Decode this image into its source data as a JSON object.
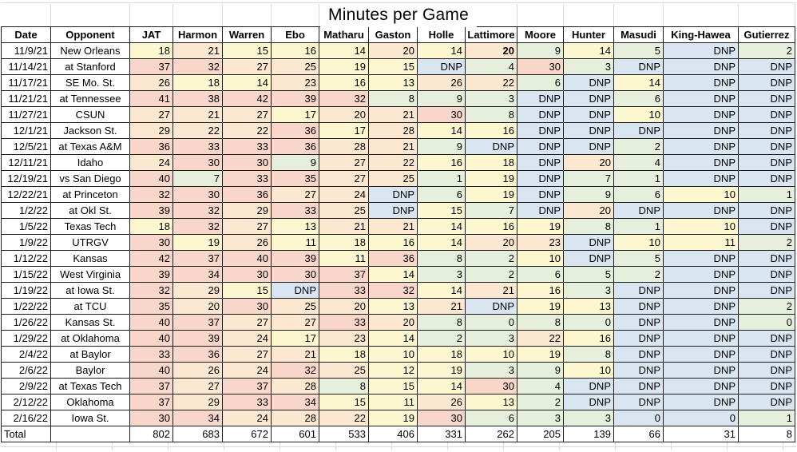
{
  "title": "Minutes per Game",
  "columns": [
    "Date",
    "Opponent",
    "JAT",
    "Harmon",
    "Warren",
    "Ebo",
    "Matharu",
    "Gaston",
    "Holle",
    "Lattimore",
    "Moore",
    "Hunter",
    "Masudi",
    "King-Hawea",
    "Gutierrez"
  ],
  "dnp_label": "DNP",
  "rows": [
    {
      "date": "11/9/21",
      "opponent": "New Orleans",
      "minutes": [
        "18",
        "21",
        "15",
        "16",
        "14",
        "20",
        "14",
        "20",
        "9",
        "14",
        "5",
        "DNP",
        "2"
      ]
    },
    {
      "date": "11/14/21",
      "opponent": "at Stanford",
      "minutes": [
        "37",
        "32",
        "27",
        "25",
        "19",
        "15",
        "DNP",
        "4",
        "30",
        "3",
        "DNP",
        "DNP",
        "DNP"
      ]
    },
    {
      "date": "11/17/21",
      "opponent": "SE Mo. St.",
      "minutes": [
        "26",
        "18",
        "14",
        "23",
        "16",
        "13",
        "26",
        "22",
        "6",
        "DNP",
        "14",
        "DNP",
        "DNP"
      ]
    },
    {
      "date": "11/21/21",
      "opponent": "at Tennessee",
      "minutes": [
        "41",
        "38",
        "42",
        "39",
        "32",
        "8",
        "9",
        "3",
        "DNP",
        "DNP",
        "6",
        "DNP",
        "DNP"
      ]
    },
    {
      "date": "11/27/21",
      "opponent": "CSUN",
      "minutes": [
        "27",
        "21",
        "27",
        "17",
        "20",
        "21",
        "30",
        "8",
        "DNP",
        "DNP",
        "10",
        "DNP",
        "DNP"
      ]
    },
    {
      "date": "12/1/21",
      "opponent": "Jackson St.",
      "minutes": [
        "29",
        "22",
        "22",
        "36",
        "17",
        "28",
        "14",
        "16",
        "DNP",
        "DNP",
        "DNP",
        "DNP",
        "DNP"
      ]
    },
    {
      "date": "12/5/21",
      "opponent": "at Texas A&M",
      "minutes": [
        "36",
        "33",
        "33",
        "36",
        "28",
        "21",
        "9",
        "DNP",
        "DNP",
        "DNP",
        "2",
        "DNP",
        "DNP"
      ]
    },
    {
      "date": "12/11/21",
      "opponent": "Idaho",
      "minutes": [
        "24",
        "30",
        "30",
        "9",
        "27",
        "22",
        "16",
        "18",
        "DNP",
        "20",
        "4",
        "DNP",
        "DNP"
      ]
    },
    {
      "date": "12/19/21",
      "opponent": "vs San Diego",
      "minutes": [
        "40",
        "7",
        "33",
        "35",
        "27",
        "25",
        "1",
        "19",
        "DNP",
        "7",
        "1",
        "DNP",
        "DNP"
      ]
    },
    {
      "date": "12/22/21",
      "opponent": "at Princeton",
      "minutes": [
        "32",
        "30",
        "36",
        "27",
        "24",
        "DNP",
        "6",
        "19",
        "DNP",
        "9",
        "6",
        "10",
        "1"
      ]
    },
    {
      "date": "1/2/22",
      "opponent": "at Okl St.",
      "minutes": [
        "39",
        "32",
        "29",
        "33",
        "25",
        "DNP",
        "15",
        "7",
        "DNP",
        "20",
        "DNP",
        "DNP",
        "DNP"
      ]
    },
    {
      "date": "1/5/22",
      "opponent": "Texas Tech",
      "minutes": [
        "18",
        "32",
        "27",
        "13",
        "21",
        "21",
        "14",
        "16",
        "19",
        "8",
        "1",
        "10",
        "DNP"
      ]
    },
    {
      "date": "1/9/22",
      "opponent": "UTRGV",
      "minutes": [
        "30",
        "19",
        "26",
        "11",
        "18",
        "16",
        "14",
        "20",
        "23",
        "DNP",
        "10",
        "11",
        "2"
      ]
    },
    {
      "date": "1/12/22",
      "opponent": "Kansas",
      "minutes": [
        "42",
        "37",
        "40",
        "39",
        "11",
        "36",
        "8",
        "2",
        "10",
        "DNP",
        "5",
        "DNP",
        "DNP"
      ]
    },
    {
      "date": "1/15/22",
      "opponent": "West Virginia",
      "minutes": [
        "39",
        "34",
        "30",
        "30",
        "37",
        "14",
        "3",
        "2",
        "6",
        "5",
        "2",
        "DNP",
        "DNP"
      ]
    },
    {
      "date": "1/19/22",
      "opponent": "at Iowa St.",
      "minutes": [
        "32",
        "29",
        "15",
        "DNP",
        "33",
        "32",
        "14",
        "21",
        "16",
        "3",
        "DNP",
        "DNP",
        "DNP"
      ]
    },
    {
      "date": "1/22/22",
      "opponent": "at TCU",
      "minutes": [
        "35",
        "20",
        "30",
        "25",
        "20",
        "13",
        "21",
        "DNP",
        "19",
        "13",
        "DNP",
        "DNP",
        "2"
      ]
    },
    {
      "date": "1/26/22",
      "opponent": "Kansas St.",
      "minutes": [
        "40",
        "37",
        "27",
        "27",
        "33",
        "20",
        "8",
        "0",
        "8",
        "0",
        "DNP",
        "DNP",
        "0"
      ]
    },
    {
      "date": "1/29/22",
      "opponent": "at Oklahoma",
      "minutes": [
        "40",
        "39",
        "24",
        "17",
        "23",
        "14",
        "2",
        "3",
        "22",
        "16",
        "DNP",
        "DNP",
        "DNP"
      ]
    },
    {
      "date": "2/4/22",
      "opponent": "at Baylor",
      "minutes": [
        "33",
        "36",
        "27",
        "21",
        "18",
        "10",
        "18",
        "10",
        "19",
        "8",
        "DNP",
        "DNP",
        "DNP"
      ]
    },
    {
      "date": "2/6/22",
      "opponent": "Baylor",
      "minutes": [
        "40",
        "26",
        "24",
        "32",
        "25",
        "12",
        "19",
        "3",
        "9",
        "10",
        "DNP",
        "DNP",
        "DNP"
      ]
    },
    {
      "date": "2/9/22",
      "opponent": "at Texas Tech",
      "minutes": [
        "37",
        "27",
        "37",
        "28",
        "8",
        "15",
        "14",
        "30",
        "4",
        "DNP",
        "DNP",
        "DNP",
        "DNP"
      ]
    },
    {
      "date": "2/12/22",
      "opponent": "Oklahoma",
      "minutes": [
        "37",
        "29",
        "33",
        "34",
        "15",
        "11",
        "26",
        "13",
        "2",
        "DNP",
        "DNP",
        "DNP",
        "DNP"
      ]
    },
    {
      "date": "2/16/22",
      "opponent": "Iowa St.",
      "minutes": [
        "30",
        "34",
        "24",
        "28",
        "22",
        "19",
        "30",
        "6",
        "3",
        "3",
        "0",
        "0",
        "1"
      ]
    }
  ],
  "total": {
    "label": "Total",
    "values": [
      "802",
      "683",
      "672",
      "601",
      "533",
      "406",
      "331",
      "262",
      "205",
      "139",
      "66",
      "31",
      "8"
    ]
  },
  "formatting": {
    "bold_cells": [
      {
        "row": 0,
        "player": "Lattimore"
      }
    ],
    "dnp_colored_cells": [
      {
        "row": 23,
        "player": "Masudi"
      },
      {
        "row": 23,
        "player": "King-Hawea"
      }
    ]
  },
  "colors": {
    "bin_0_9": "#E6EFDC",
    "bin_10_19": "#FDF7D0",
    "bin_20_29": "#FCE8D0",
    "bin_30_plus": "#F8D6CA",
    "dnp": "#D9E6F2",
    "header_bg": "#FFFFFF",
    "border": "#1B1B1B",
    "faint_grid": "#D9D9D9",
    "text": "#000000"
  }
}
